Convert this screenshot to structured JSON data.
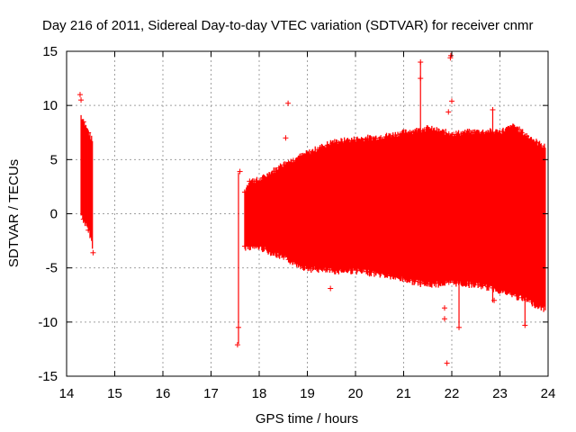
{
  "chart_data": {
    "type": "scatter",
    "title": "Day 216 of 2011, Sidereal Day-to-day VTEC variation (SDTVAR) for receiver cnmr",
    "xlabel": "GPS time / hours",
    "ylabel": "SDTVAR / TECUs",
    "xlim": [
      14,
      24
    ],
    "ylim": [
      -15,
      15
    ],
    "x_ticks": [
      "14",
      "15",
      "16",
      "17",
      "18",
      "19",
      "20",
      "21",
      "22",
      "23",
      "24"
    ],
    "y_ticks": [
      "15",
      "10",
      "5",
      "0",
      "-5",
      "-10",
      "-15"
    ],
    "grid": true,
    "marker": "+",
    "color": "#ff0000",
    "series": [
      {
        "name": "SDTVAR",
        "envelope_x": [
          14.3,
          14.5,
          14.55,
          17.55,
          17.65,
          17.7,
          17.8,
          18.0,
          18.5,
          19.0,
          19.5,
          20.0,
          20.5,
          21.0,
          21.5,
          22.0,
          22.5,
          23.0,
          23.3,
          23.6,
          23.95
        ],
        "envelope_upper": [
          9,
          7,
          6.5,
          3,
          2,
          2,
          3,
          3,
          4.5,
          5.5,
          6.5,
          6.8,
          7,
          7.4,
          7.8,
          7.3,
          7.5,
          7.5,
          8,
          7,
          6
        ],
        "envelope_lower": [
          0,
          -2,
          -3.5,
          -2,
          -2.5,
          -3,
          -3,
          -3,
          -4,
          -5,
          -5.2,
          -5.2,
          -5.5,
          -6,
          -6.5,
          -6.3,
          -6.5,
          -7,
          -7.5,
          -8,
          -8.8
        ],
        "outliers": [
          {
            "x": 14.28,
            "y": 11.0
          },
          {
            "x": 14.3,
            "y": 10.5
          },
          {
            "x": 14.55,
            "y": -3.6
          },
          {
            "x": 17.55,
            "y": -12.1
          },
          {
            "x": 17.57,
            "y": -10.5
          },
          {
            "x": 17.6,
            "y": 3.9
          },
          {
            "x": 18.6,
            "y": 10.2
          },
          {
            "x": 18.55,
            "y": 7.0
          },
          {
            "x": 19.48,
            "y": -6.9
          },
          {
            "x": 21.35,
            "y": 14.0
          },
          {
            "x": 21.35,
            "y": 12.5
          },
          {
            "x": 21.9,
            "y": -13.8
          },
          {
            "x": 21.85,
            "y": -9.7
          },
          {
            "x": 21.85,
            "y": -8.7
          },
          {
            "x": 21.93,
            "y": 9.4
          },
          {
            "x": 21.97,
            "y": 14.4
          },
          {
            "x": 21.98,
            "y": 14.6
          },
          {
            "x": 22.0,
            "y": 10.4
          },
          {
            "x": 22.15,
            "y": -10.5
          },
          {
            "x": 22.85,
            "y": 9.6
          },
          {
            "x": 22.88,
            "y": -8.0
          },
          {
            "x": 23.52,
            "y": -10.3
          }
        ],
        "spikes": [
          {
            "x": 17.57,
            "from": -12,
            "to": 3.8
          },
          {
            "x": 21.35,
            "from": 0,
            "to": 14
          },
          {
            "x": 22.15,
            "from": -10.5,
            "to": -5
          },
          {
            "x": 22.85,
            "from": -8.2,
            "to": 9.6
          },
          {
            "x": 23.52,
            "from": -10.3,
            "to": -6
          }
        ]
      }
    ]
  }
}
